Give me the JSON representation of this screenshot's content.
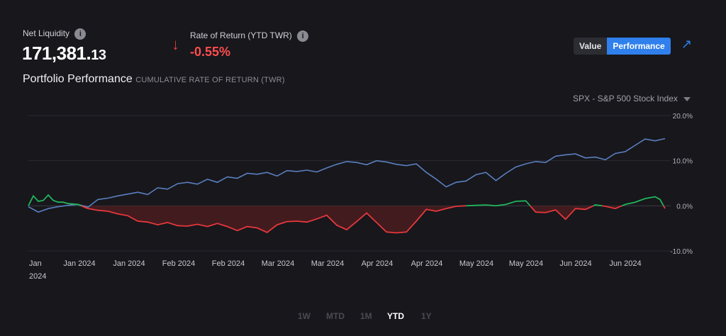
{
  "header": {
    "net_liquidity_label": "Net Liquidity",
    "net_liquidity_int": "171,381.",
    "net_liquidity_dec": "13",
    "ror_label": "Rate of Return (YTD TWR)",
    "ror_value": "-0.55%",
    "info_glyph": "i",
    "arrow_icon": "arrow-down-icon",
    "expand_icon": "expand-icon"
  },
  "title": {
    "main": "Portfolio Performance",
    "sub": "CUMULATIVE RATE OF RETURN (TWR)"
  },
  "toggle": {
    "value_label": "Value",
    "performance_label": "Performance",
    "active": "Performance"
  },
  "benchmark": {
    "selected": "SPX - S&P 500 Stock Index"
  },
  "ranges": {
    "items": [
      "1W",
      "MTD",
      "1M",
      "YTD",
      "1Y"
    ],
    "active": "YTD"
  },
  "colors": {
    "benchmark": "#5b7fbf",
    "positive": "#21b35a",
    "negative": "#e5383b",
    "negative_fill": "#4a1c20"
  },
  "chart_data": {
    "type": "line",
    "xlabels": [
      "Jan 2024",
      "Jan 2024",
      "Jan 2024",
      "Feb 2024",
      "Feb 2024",
      "Mar 2024",
      "Mar 2024",
      "Apr 2024",
      "Apr 2024",
      "May 2024",
      "May 2024",
      "Jun 2024",
      "Jun 2024"
    ],
    "yticks": [
      "20.0%",
      "10.0%",
      "0.0%",
      "-10.0%"
    ],
    "ylim": [
      -10,
      20
    ],
    "x_range": [
      0,
      128
    ],
    "series": [
      {
        "name": "SPX - S&P 500 Stock Index",
        "x": [
          0,
          2,
          4,
          6,
          8,
          10,
          12,
          14,
          16,
          18,
          20,
          22,
          24,
          26,
          28,
          30,
          32,
          34,
          36,
          38,
          40,
          42,
          44,
          46,
          48,
          50,
          52,
          54,
          56,
          58,
          60,
          62,
          64,
          66,
          68,
          70,
          72,
          74,
          76,
          78,
          80,
          82,
          84,
          86,
          88,
          90,
          92,
          94,
          96,
          98,
          100,
          102,
          104,
          106,
          108,
          110,
          112,
          114,
          116,
          118,
          120,
          122,
          124,
          126,
          128
        ],
        "values": [
          -0.2,
          -1.4,
          -0.6,
          -0.2,
          0.1,
          0.3,
          -0.3,
          1.4,
          1.7,
          2.2,
          2.6,
          3.0,
          2.5,
          4.0,
          3.7,
          4.9,
          5.2,
          4.8,
          5.9,
          5.2,
          6.4,
          6.1,
          7.2,
          7.0,
          7.4,
          6.6,
          7.8,
          7.6,
          7.9,
          7.5,
          8.4,
          9.2,
          9.8,
          9.6,
          9.1,
          10.0,
          9.7,
          9.2,
          8.9,
          9.3,
          7.4,
          5.9,
          4.2,
          5.2,
          5.5,
          6.9,
          7.4,
          5.6,
          7.2,
          8.6,
          9.3,
          9.8,
          9.6,
          11.0,
          11.3,
          11.5,
          10.6,
          10.8,
          10.2,
          11.6,
          12.0,
          13.4,
          14.8,
          14.4,
          14.9
        ]
      },
      {
        "name": "Portfolio",
        "x": [
          0,
          1,
          2,
          3,
          4,
          5,
          6,
          7,
          8,
          9,
          10,
          11,
          12,
          14,
          16,
          18,
          20,
          22,
          24,
          26,
          28,
          30,
          32,
          34,
          36,
          38,
          40,
          42,
          44,
          46,
          48,
          50,
          52,
          54,
          56,
          58,
          60,
          62,
          64,
          66,
          68,
          70,
          72,
          74,
          76,
          78,
          80,
          82,
          84,
          86,
          88,
          90,
          92,
          94,
          96,
          98,
          100,
          102,
          104,
          106,
          108,
          110,
          112,
          114,
          116,
          118,
          120,
          122,
          124,
          126,
          127,
          128
        ],
        "values": [
          0.0,
          2.2,
          1.0,
          1.2,
          2.4,
          1.2,
          0.8,
          0.8,
          0.5,
          0.4,
          0.3,
          -0.2,
          -0.6,
          -1.0,
          -1.2,
          -1.8,
          -2.2,
          -3.4,
          -3.6,
          -4.2,
          -3.7,
          -4.4,
          -4.5,
          -4.1,
          -4.6,
          -3.9,
          -4.6,
          -5.5,
          -4.6,
          -4.9,
          -5.9,
          -4.2,
          -3.5,
          -3.4,
          -3.6,
          -2.9,
          -2.1,
          -4.3,
          -5.3,
          -3.5,
          -1.6,
          -3.7,
          -5.8,
          -6.0,
          -5.8,
          -3.4,
          -0.8,
          -1.2,
          -0.6,
          -0.1,
          0.0,
          0.1,
          0.2,
          0.0,
          0.3,
          1.0,
          1.1,
          -1.4,
          -1.5,
          -0.9,
          -3.0,
          -0.6,
          -0.8,
          0.2,
          -0.1,
          -0.6,
          0.3,
          0.8,
          1.6,
          2.0,
          1.4,
          -0.6
        ]
      }
    ],
    "grid": true
  }
}
